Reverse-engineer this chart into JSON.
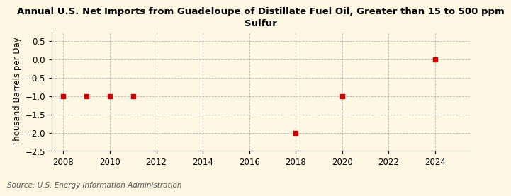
{
  "title_line1": "Annual U.S. Net Imports from Guadeloupe of Distillate Fuel Oil, Greater than 15 to 500 ppm",
  "title_line2": "Sulfur",
  "ylabel": "Thousand Barrels per Day",
  "source": "Source: U.S. Energy Information Administration",
  "x_data": [
    2008,
    2009,
    2010,
    2011,
    2018,
    2020,
    2024
  ],
  "y_data": [
    -1.0,
    -1.0,
    -1.0,
    -1.0,
    -2.0,
    -1.0,
    0.0
  ],
  "xlim": [
    2007.5,
    2025.5
  ],
  "ylim": [
    -2.5,
    0.75
  ],
  "yticks": [
    0.5,
    0.0,
    -0.5,
    -1.0,
    -1.5,
    -2.0,
    -2.5
  ],
  "xticks": [
    2008,
    2010,
    2012,
    2014,
    2016,
    2018,
    2020,
    2022,
    2024
  ],
  "marker_color": "#cc0000",
  "marker": "s",
  "marker_size": 4,
  "background_color": "#fdf6e3",
  "grid_color": "#aaaaaa",
  "title_fontsize": 9.5,
  "axis_label_fontsize": 8.5,
  "tick_fontsize": 8.5,
  "source_fontsize": 7.5
}
